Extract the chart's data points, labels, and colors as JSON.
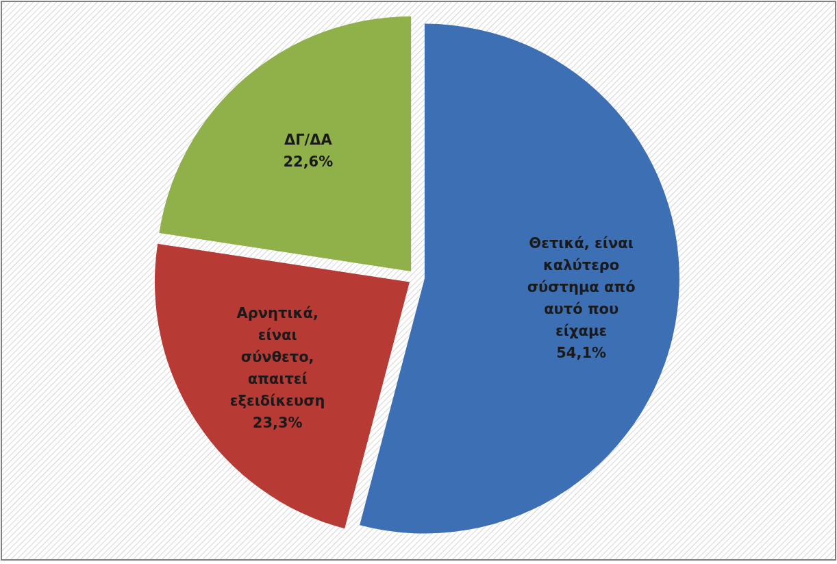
{
  "chart_data": {
    "type": "pie",
    "categories": [
      "Θετικά, είναι καλύτερο σύστημα από αυτό που είχαμε",
      "Αρνητικά, είναι σύνθετο, απαιτεί εξειδίκευση",
      "ΔΓ/ΔΑ"
    ],
    "values": [
      54.1,
      23.3,
      22.6
    ],
    "colors": [
      "#3d6fb5",
      "#b83a35",
      "#90b04a"
    ],
    "value_labels": [
      "54,1%",
      "23,3%",
      "22,6%"
    ],
    "legend": false
  }
}
